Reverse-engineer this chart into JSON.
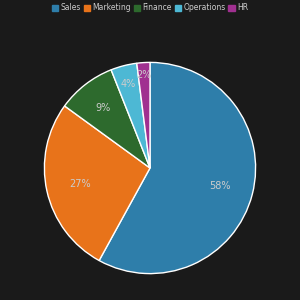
{
  "labels": [
    "Sales",
    "Marketing",
    "Finance",
    "Operations",
    "HR"
  ],
  "values": [
    58,
    27,
    9,
    4,
    2
  ],
  "colors": [
    "#2e7eaa",
    "#e8731a",
    "#2d6a2d",
    "#4db8d4",
    "#a03090"
  ],
  "legend_labels": [
    "Sales",
    "Marketing",
    "Finance",
    "Operations",
    "HR"
  ],
  "background_color": "#1a1a1a",
  "fig_bg": "#1a1a1a",
  "label_color": "#cccccc",
  "legend_color": "#cccccc",
  "startangle": 90,
  "pct_labels": [
    "58%",
    "27%",
    "9%",
    "4%",
    "2%"
  ],
  "pct_distances": [
    0.68,
    0.68,
    0.72,
    0.82,
    0.88
  ]
}
